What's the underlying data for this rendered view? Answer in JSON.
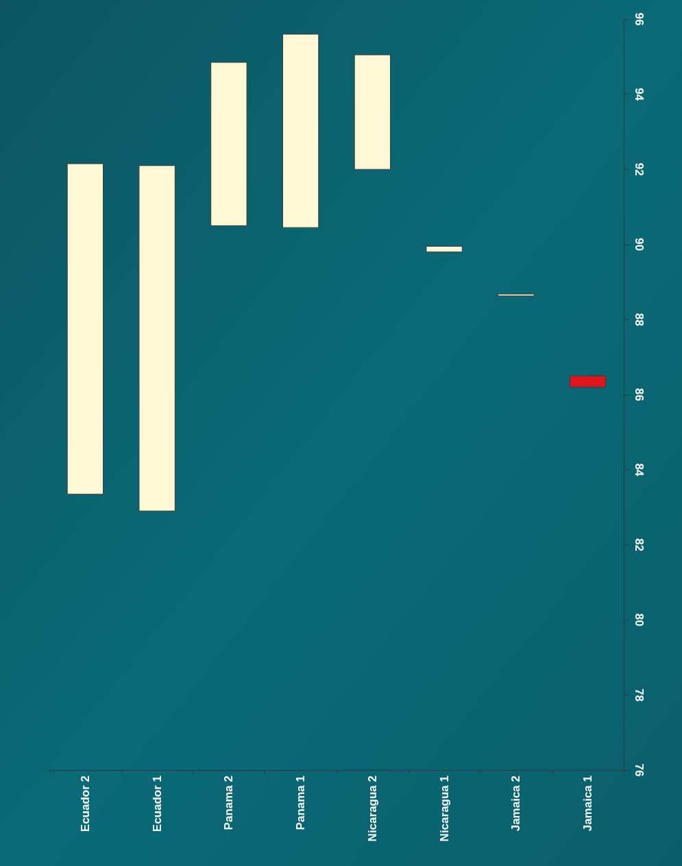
{
  "chart_data": {
    "type": "bar",
    "categories": [
      "Ecuador 2",
      "Ecuador 1",
      "Panama 2",
      "Panama 1",
      "Nicaragua 2",
      "Nicaragua 1",
      "Jamaica 2",
      "Jamaica 1"
    ],
    "base": [
      83.35,
      82.9,
      90.5,
      90.45,
      92.0,
      89.8,
      88.63,
      86.2
    ],
    "values": [
      8.8,
      9.2,
      4.35,
      5.15,
      3.05,
      0.15,
      0.05,
      0.3
    ],
    "colors": [
      "#fff8d6",
      "#fff8d6",
      "#fff8d6",
      "#fff8d6",
      "#fff8d6",
      "#fff8d6",
      "#fff8d6",
      "#e0161e"
    ],
    "ylim": [
      76,
      96
    ],
    "yticks": [
      76,
      78,
      80,
      82,
      84,
      86,
      88,
      90,
      92,
      94,
      96
    ],
    "grid": false
  }
}
